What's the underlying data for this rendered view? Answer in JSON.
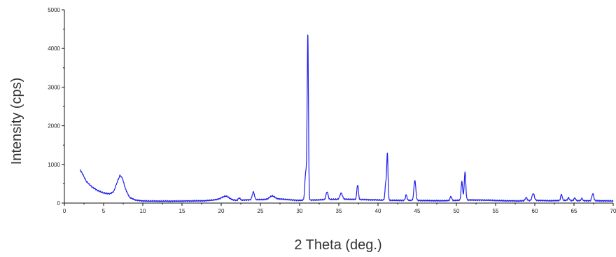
{
  "chart_data": {
    "type": "line",
    "title": "",
    "xlabel": "2 Theta (deg.)",
    "ylabel": "Intensity (cps)",
    "xlim": [
      0,
      70
    ],
    "ylim": [
      0,
      5000
    ],
    "x_ticks": [
      0,
      5,
      10,
      15,
      20,
      25,
      30,
      35,
      40,
      45,
      50,
      55,
      60,
      65,
      70
    ],
    "x_tick_labels": [
      "0",
      "5",
      "10",
      "15",
      "20",
      "25",
      "30",
      "35",
      "40",
      "45",
      "50",
      "55",
      "60",
      "65",
      "70"
    ],
    "y_ticks": [
      0,
      1000,
      2000,
      3000,
      4000,
      5000
    ],
    "y_tick_labels": [
      "0",
      "1000",
      "2000",
      "3000",
      "4000",
      "5000"
    ],
    "grid": false,
    "legend": "none",
    "line_color": "#2020ee",
    "series": [
      {
        "baseline": [
          [
            2,
            860
          ],
          [
            2.3,
            760
          ],
          [
            2.8,
            560
          ],
          [
            3.5,
            420
          ],
          [
            4.2,
            330
          ],
          [
            5,
            260
          ],
          [
            5.8,
            240
          ],
          [
            6.3,
            300
          ],
          [
            6.8,
            580
          ],
          [
            7.1,
            720
          ],
          [
            7.4,
            640
          ],
          [
            7.8,
            360
          ],
          [
            8.3,
            150
          ],
          [
            9,
            80
          ],
          [
            10,
            55
          ],
          [
            12,
            50
          ],
          [
            14,
            50
          ],
          [
            16,
            55
          ],
          [
            18,
            60
          ],
          [
            19,
            80
          ],
          [
            20,
            110
          ],
          [
            21,
            90
          ],
          [
            22,
            70
          ],
          [
            23,
            80
          ],
          [
            25,
            90
          ],
          [
            27,
            110
          ],
          [
            28,
            100
          ],
          [
            29,
            80
          ],
          [
            30,
            70
          ],
          [
            32,
            80
          ],
          [
            34,
            95
          ],
          [
            36,
            100
          ],
          [
            38,
            90
          ],
          [
            40,
            80
          ],
          [
            42,
            70
          ],
          [
            44,
            70
          ],
          [
            46,
            65
          ],
          [
            48,
            60
          ],
          [
            50,
            70
          ],
          [
            52,
            80
          ],
          [
            54,
            75
          ],
          [
            56,
            60
          ],
          [
            58,
            55
          ],
          [
            60,
            70
          ],
          [
            62,
            60
          ],
          [
            64,
            70
          ],
          [
            66,
            60
          ],
          [
            68,
            60
          ],
          [
            70,
            55
          ]
        ],
        "peaks": [
          {
            "x": 20.6,
            "height": 80,
            "width": 0.4
          },
          {
            "x": 22.3,
            "height": 60,
            "width": 0.12
          },
          {
            "x": 24.1,
            "height": 200,
            "width": 0.14
          },
          {
            "x": 26.5,
            "height": 80,
            "width": 0.3
          },
          {
            "x": 30.8,
            "height": 750,
            "width": 0.12
          },
          {
            "x": 31.05,
            "height": 4220,
            "width": 0.08
          },
          {
            "x": 33.5,
            "height": 200,
            "width": 0.13
          },
          {
            "x": 35.3,
            "height": 160,
            "width": 0.16
          },
          {
            "x": 37.4,
            "height": 380,
            "width": 0.1
          },
          {
            "x": 41.0,
            "height": 450,
            "width": 0.1
          },
          {
            "x": 41.2,
            "height": 1150,
            "width": 0.08
          },
          {
            "x": 43.6,
            "height": 140,
            "width": 0.1
          },
          {
            "x": 44.7,
            "height": 520,
            "width": 0.12
          },
          {
            "x": 49.3,
            "height": 110,
            "width": 0.1
          },
          {
            "x": 50.7,
            "height": 480,
            "width": 0.1
          },
          {
            "x": 51.1,
            "height": 720,
            "width": 0.1
          },
          {
            "x": 58.9,
            "height": 80,
            "width": 0.12
          },
          {
            "x": 59.8,
            "height": 180,
            "width": 0.14
          },
          {
            "x": 63.4,
            "height": 160,
            "width": 0.1
          },
          {
            "x": 64.3,
            "height": 70,
            "width": 0.1
          },
          {
            "x": 65.1,
            "height": 70,
            "width": 0.1
          },
          {
            "x": 66.0,
            "height": 60,
            "width": 0.1
          },
          {
            "x": 67.4,
            "height": 180,
            "width": 0.12
          }
        ]
      }
    ]
  }
}
